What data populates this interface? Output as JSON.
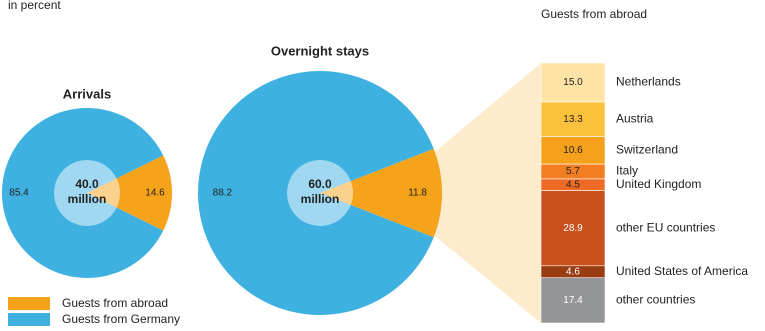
{
  "subtitle": "in percent",
  "legend": [
    {
      "name": "Guests from abroad",
      "color": "#f5a31a"
    },
    {
      "name": "Guests from Germany",
      "color": "#3eb1e1"
    }
  ],
  "chart_data": [
    {
      "type": "pie",
      "title": "Arrivals",
      "values": [
        14.6,
        85.4
      ],
      "center_value": {
        "value": 40,
        "label": "40.0"
      },
      "center_unit": "million"
    },
    {
      "type": "pie",
      "title": "Overnight stays",
      "values": [
        11.8,
        88.2
      ],
      "center_value": {
        "value": 60,
        "label": "60.0"
      },
      "center_unit": "million"
    },
    {
      "type": "stacked_bar",
      "title": "Guests from abroad",
      "categories": [
        "Netherlands",
        "Austria",
        "Switzerland",
        "Italy",
        "United Kingdom",
        "other EU countries",
        "United States of America",
        "other countries"
      ],
      "values": [
        15.0,
        13.3,
        10.6,
        5.7,
        4.5,
        28.9,
        4.6,
        17.4
      ],
      "value_labels": [
        "15.0",
        "13.3",
        "10.6",
        "5.7",
        "4.5",
        "28.9",
        "4.6",
        "17.4"
      ],
      "colors": [
        "#fde3a6",
        "#fbc03c",
        "#f6a11b",
        "#f27e22",
        "#ee6b25",
        "#c8501c",
        "#9a3c12",
        "#949599"
      ],
      "ylim": [
        0,
        100
      ]
    }
  ]
}
